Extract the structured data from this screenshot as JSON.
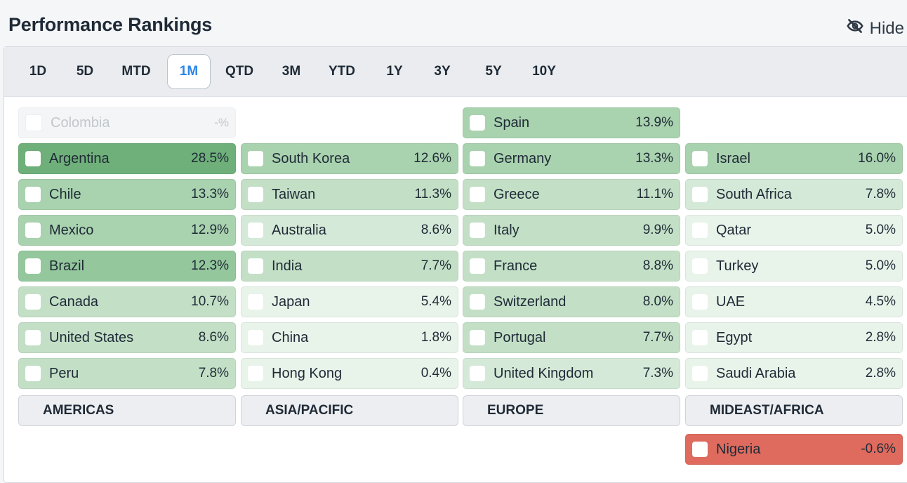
{
  "header": {
    "title": "Performance Rankings",
    "hide_label": "Hide"
  },
  "tabs": [
    {
      "label": "1D",
      "active": false
    },
    {
      "label": "5D",
      "active": false
    },
    {
      "label": "MTD",
      "active": false
    },
    {
      "label": "1M",
      "active": true
    },
    {
      "label": "QTD",
      "active": false
    },
    {
      "label": "3M",
      "active": false
    },
    {
      "label": "YTD",
      "active": false
    },
    {
      "label": "1Y",
      "active": false
    },
    {
      "label": "3Y",
      "active": false
    },
    {
      "label": "5Y",
      "active": false
    },
    {
      "label": "10Y",
      "active": false
    }
  ],
  "colors": {
    "green_scale": [
      "#e8f3ea",
      "#d5e9d8",
      "#c3e0c7",
      "#a9d2af",
      "#94c79c",
      "#6fb07a"
    ],
    "negative": "#df6b5f",
    "active_tab_text": "#2b86e6"
  },
  "columns": [
    {
      "region": "AMERICAS",
      "top": {
        "name": "Colombia",
        "value": "-%"
      },
      "rows": [
        {
          "name": "Argentina",
          "value": "28.5%",
          "level": 5
        },
        {
          "name": "Chile",
          "value": "13.3%",
          "level": 3
        },
        {
          "name": "Mexico",
          "value": "12.9%",
          "level": 3
        },
        {
          "name": "Brazil",
          "value": "12.3%",
          "level": 4
        },
        {
          "name": "Canada",
          "value": "10.7%",
          "level": 2
        },
        {
          "name": "United States",
          "value": "8.6%",
          "level": 2
        },
        {
          "name": "Peru",
          "value": "7.8%",
          "level": 2
        }
      ]
    },
    {
      "region": "ASIA/PACIFIC",
      "rows": [
        {
          "name": "South Korea",
          "value": "12.6%",
          "level": 3
        },
        {
          "name": "Taiwan",
          "value": "11.3%",
          "level": 2
        },
        {
          "name": "Australia",
          "value": "8.6%",
          "level": 1
        },
        {
          "name": "India",
          "value": "7.7%",
          "level": 2
        },
        {
          "name": "Japan",
          "value": "5.4%",
          "level": 0
        },
        {
          "name": "China",
          "value": "1.8%",
          "level": 0
        },
        {
          "name": "Hong Kong",
          "value": "0.4%",
          "level": 0
        }
      ]
    },
    {
      "region": "EUROPE",
      "top": {
        "name": "Spain",
        "value": "13.9%",
        "level": 3
      },
      "rows": [
        {
          "name": "Germany",
          "value": "13.3%",
          "level": 3
        },
        {
          "name": "Greece",
          "value": "11.1%",
          "level": 2
        },
        {
          "name": "Italy",
          "value": "9.9%",
          "level": 2
        },
        {
          "name": "France",
          "value": "8.8%",
          "level": 2
        },
        {
          "name": "Switzerland",
          "value": "8.0%",
          "level": 2
        },
        {
          "name": "Portugal",
          "value": "7.7%",
          "level": 2
        },
        {
          "name": "United Kingdom",
          "value": "7.3%",
          "level": 1
        }
      ]
    },
    {
      "region": "MIDEAST/AFRICA",
      "rows": [
        {
          "name": "Israel",
          "value": "16.0%",
          "level": 3
        },
        {
          "name": "South Africa",
          "value": "7.8%",
          "level": 1
        },
        {
          "name": "Qatar",
          "value": "5.0%",
          "level": 0
        },
        {
          "name": "Turkey",
          "value": "5.0%",
          "level": 0
        },
        {
          "name": "UAE",
          "value": "4.5%",
          "level": 0
        },
        {
          "name": "Egypt",
          "value": "2.8%",
          "level": 0
        },
        {
          "name": "Saudi Arabia",
          "value": "2.8%",
          "level": 0
        }
      ],
      "bottom": {
        "name": "Nigeria",
        "value": "-0.6%",
        "negative": true
      }
    }
  ]
}
